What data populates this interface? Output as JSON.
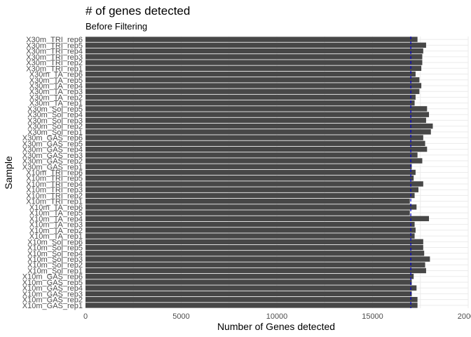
{
  "chart_data": {
    "type": "bar",
    "orientation": "horizontal",
    "title": "# of genes detected",
    "subtitle": "Before Filtering",
    "xlabel": "Number of Genes detected",
    "ylabel": "Sample",
    "xlim": [
      0,
      20000
    ],
    "xticks": [
      0,
      5000,
      10000,
      15000,
      20000
    ],
    "xtick_labels": [
      "0",
      "5000",
      "10000",
      "15000",
      "20000"
    ],
    "grid": true,
    "bar_color": "#474747",
    "reference_line": {
      "value": 17000,
      "color": "#0000cc",
      "style": "dashed"
    },
    "categories": [
      "X10m_GAS_rep1",
      "X10m_GAS_rep2",
      "X10m_GAS_rep3",
      "X10m_GAS_rep4",
      "X10m_GAS_rep5",
      "X10m_GAS_rep6",
      "X10m_Sol_rep1",
      "X10m_Sol_rep2",
      "X10m_Sol_rep3",
      "X10m_Sol_rep4",
      "X10m_Sol_rep5",
      "X10m_Sol_rep6",
      "X10m_TA_rep1",
      "X10m_TA_rep2",
      "X10m_TA_rep3",
      "X10m_TA_rep4",
      "X10m_TA_rep5",
      "X10m_TA_rep6",
      "X10m_TRI_rep1",
      "X10m_TRI_rep2",
      "X10m_TRI_rep3",
      "X10m_TRI_rep4",
      "X10m_TRI_rep5",
      "X10m_TRI_rep6",
      "X30m_GAS_rep1",
      "X30m_GAS_rep2",
      "X30m_GAS_rep3",
      "X30m_GAS_rep4",
      "X30m_GAS_rep5",
      "X30m_GAS_rep6",
      "X30m_Sol_rep1",
      "X30m_Sol_rep2",
      "X30m_Sol_rep3",
      "X30m_Sol_rep4",
      "X30m_Sol_rep5",
      "X30m_TA_rep1",
      "X30m_TA_rep2",
      "X30m_TA_rep3",
      "X30m_TA_rep4",
      "X30m_TA_rep5",
      "X30m_TA_rep6",
      "X30m_TRI_rep1",
      "X30m_TRI_rep2",
      "X30m_TRI_rep3",
      "X30m_TRI_rep4",
      "X30m_TRI_rep5",
      "X30m_TRI_rep6"
    ],
    "values": [
      17350,
      17350,
      17050,
      17300,
      17050,
      17150,
      17800,
      17750,
      18000,
      17700,
      17650,
      17650,
      17200,
      17250,
      17200,
      17950,
      16950,
      17300,
      16950,
      17200,
      17400,
      17650,
      17150,
      17250,
      17050,
      17600,
      17350,
      17850,
      17750,
      17650,
      18050,
      18150,
      17800,
      17950,
      17850,
      17200,
      17250,
      17450,
      17550,
      17450,
      17250,
      17550,
      17600,
      17600,
      17650,
      17800,
      17350
    ]
  }
}
